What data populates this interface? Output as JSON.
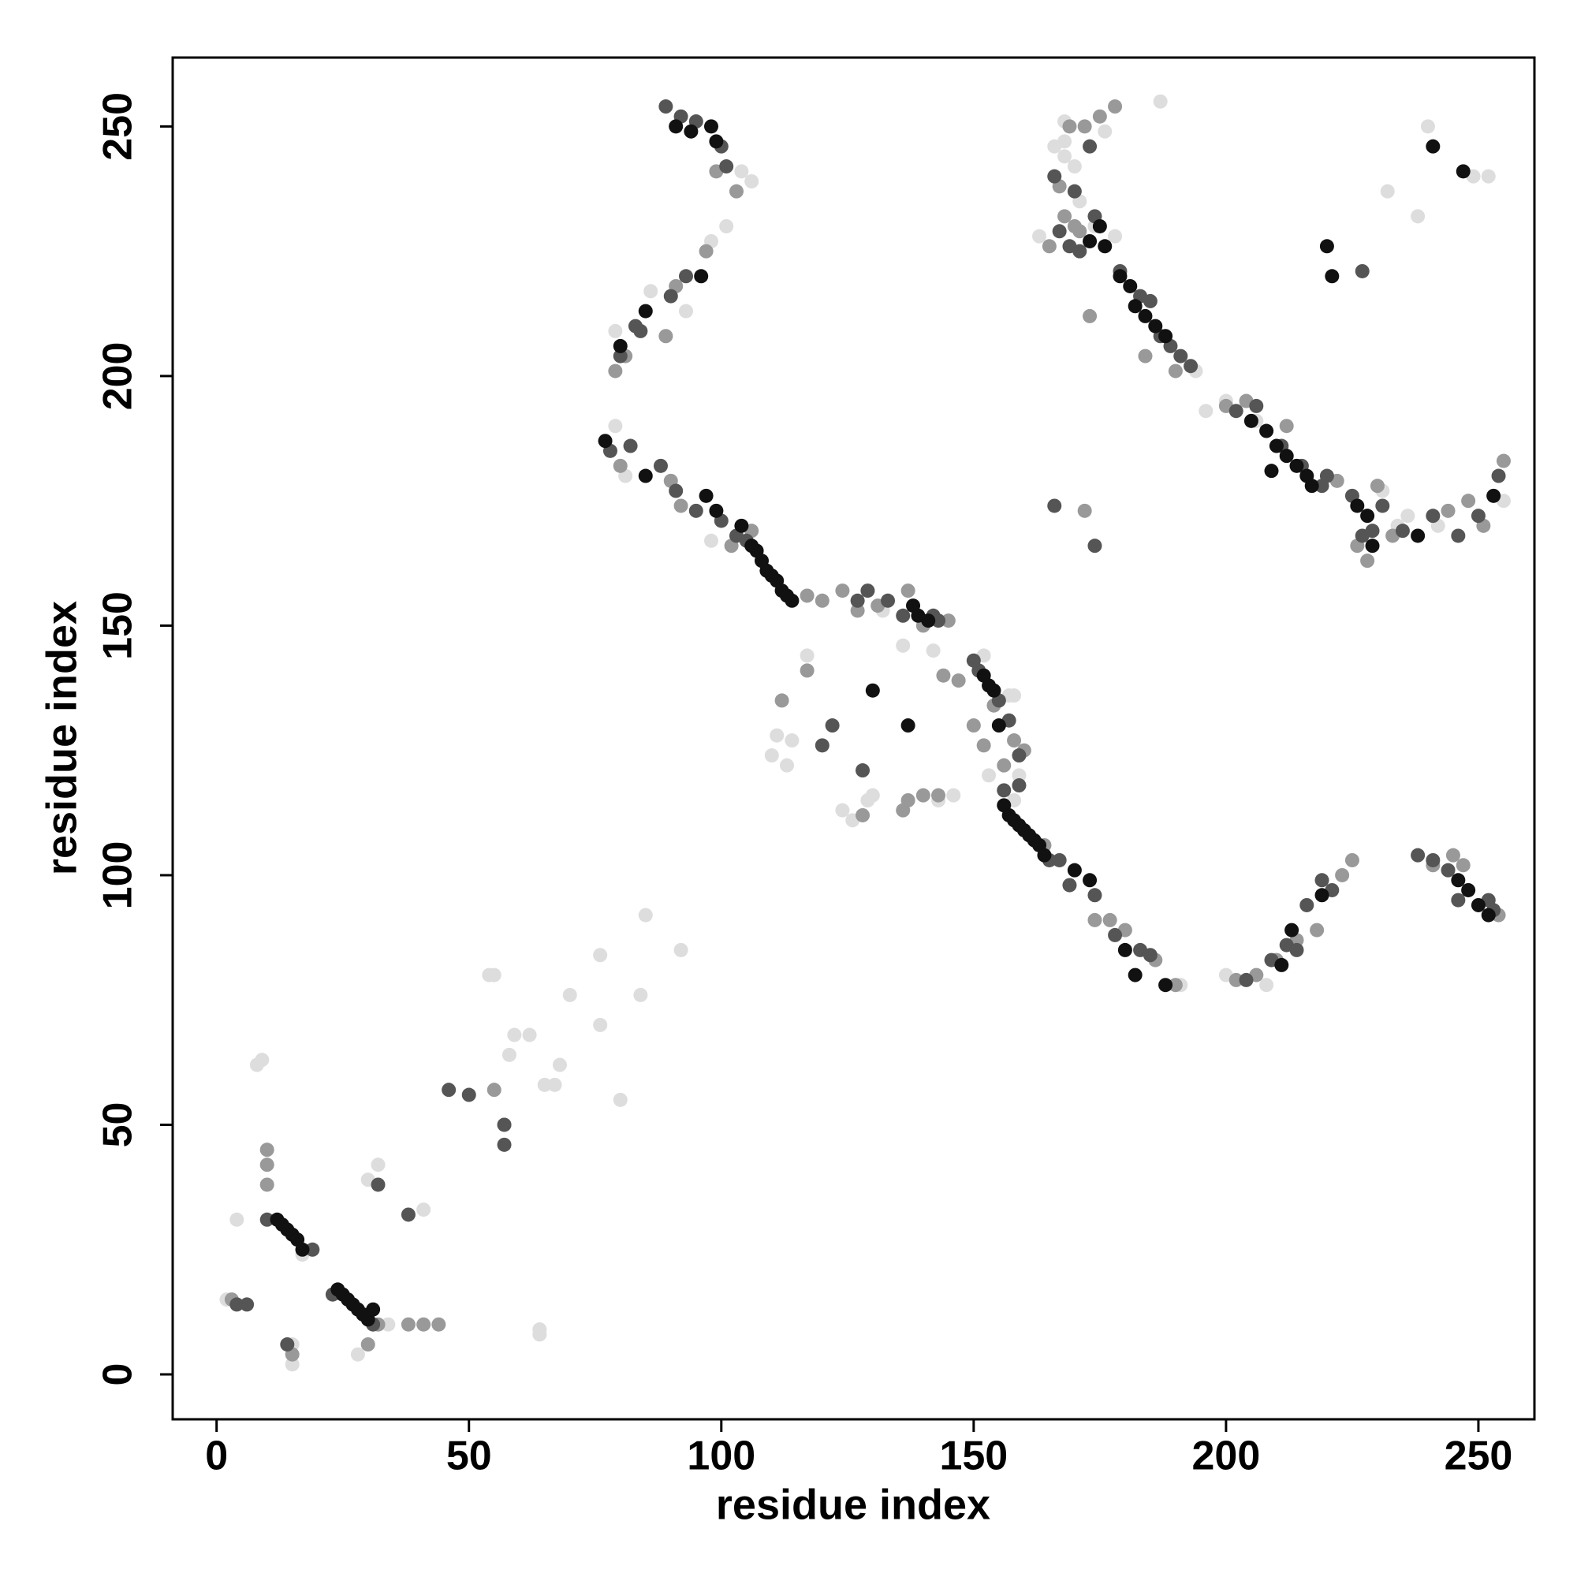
{
  "chart_data": {
    "type": "scatter",
    "x_label": "residue index",
    "y_label": "residue index",
    "xlim": [
      -8.7,
      261.1
    ],
    "ylim": [
      -9,
      263.8
    ],
    "xticks": [
      0,
      50,
      100,
      150,
      200,
      250
    ],
    "yticks": [
      0,
      50,
      100,
      150,
      200,
      250
    ],
    "series": [
      {
        "color": "#dddddd",
        "x": [
          2,
          4,
          8,
          9,
          15,
          15,
          17,
          19,
          28,
          30,
          32,
          34,
          41,
          54,
          55,
          58,
          59,
          62,
          64,
          64,
          65,
          67,
          68,
          70,
          76,
          76,
          80,
          84,
          85,
          92,
          79,
          86,
          93,
          98,
          101,
          104,
          106,
          79,
          81,
          98,
          111,
          113,
          117,
          114,
          110,
          124,
          126,
          129,
          130,
          132,
          143,
          146,
          136,
          142,
          152,
          154,
          158,
          159,
          153,
          158,
          196,
          200,
          206,
          168,
          170,
          171,
          176,
          187,
          166,
          168,
          174,
          178,
          194,
          232,
          238,
          240,
          249,
          252,
          234,
          236,
          231,
          242,
          255,
          168,
          200,
          208,
          191,
          163,
          157
        ],
        "values": [
          15,
          31,
          62,
          63,
          2,
          6,
          24,
          25,
          4,
          39,
          42,
          10,
          33,
          80,
          80,
          64,
          68,
          68,
          9,
          8,
          58,
          58,
          62,
          76,
          84,
          70,
          55,
          76,
          92,
          85,
          209,
          217,
          213,
          227,
          230,
          241,
          239,
          190,
          180,
          167,
          128,
          122,
          144,
          127,
          124,
          113,
          111,
          115,
          116,
          153,
          115,
          116,
          146,
          145,
          144,
          137,
          136,
          120,
          120,
          115,
          193,
          195,
          191,
          251,
          242,
          235,
          249,
          255,
          246,
          244,
          230,
          228,
          201,
          237,
          232,
          250,
          240,
          240,
          170,
          172,
          177,
          170,
          175,
          247,
          80,
          78,
          78,
          228,
          136
        ]
      },
      {
        "color": "#999999",
        "x": [
          3,
          10,
          10,
          10,
          15,
          30,
          32,
          38,
          41,
          44,
          57,
          55,
          79,
          81,
          89,
          91,
          97,
          103,
          99,
          80,
          90,
          92,
          106,
          102,
          117,
          120,
          124,
          127,
          131,
          137,
          140,
          145,
          112,
          117,
          136,
          137,
          140,
          143,
          150,
          152,
          156,
          160,
          164,
          174,
          177,
          180,
          186,
          190,
          202,
          206,
          210,
          214,
          218,
          223,
          225,
          241,
          245,
          247,
          254,
          167,
          168,
          170,
          169,
          172,
          175,
          178,
          184,
          190,
          200,
          204,
          212,
          222,
          226,
          228,
          233,
          244,
          248,
          251,
          255,
          165,
          171,
          173,
          144,
          147,
          154,
          158,
          172,
          230,
          128
        ],
        "values": [
          15,
          45,
          38,
          42,
          4,
          6,
          10,
          10,
          10,
          10,
          50,
          57,
          201,
          204,
          208,
          218,
          225,
          237,
          241,
          182,
          179,
          174,
          169,
          166,
          156,
          155,
          157,
          153,
          154,
          157,
          150,
          151,
          135,
          141,
          113,
          115,
          116,
          116,
          130,
          126,
          122,
          125,
          106,
          91,
          91,
          89,
          83,
          78,
          79,
          80,
          83,
          87,
          89,
          100,
          103,
          102,
          104,
          102,
          92,
          238,
          232,
          230,
          250,
          250,
          252,
          254,
          204,
          201,
          194,
          195,
          190,
          179,
          166,
          163,
          168,
          173,
          175,
          170,
          183,
          226,
          229,
          212,
          140,
          139,
          134,
          127,
          173,
          178,
          112
        ]
      },
      {
        "color": "#555555",
        "x": [
          4,
          6,
          14,
          10,
          19,
          23,
          31,
          32,
          38,
          46,
          50,
          57,
          57,
          89,
          92,
          95,
          100,
          101,
          80,
          83,
          84,
          90,
          93,
          78,
          82,
          88,
          91,
          95,
          100,
          103,
          105,
          122,
          120,
          128,
          133,
          142,
          150,
          151,
          155,
          157,
          159,
          159,
          156,
          165,
          167,
          169,
          174,
          178,
          183,
          185,
          204,
          209,
          212,
          214,
          216,
          219,
          221,
          238,
          241,
          244,
          246,
          252,
          253,
          166,
          167,
          171,
          169,
          174,
          179,
          183,
          185,
          189,
          187,
          191,
          193,
          202,
          206,
          211,
          215,
          219,
          220,
          225,
          227,
          229,
          231,
          235,
          241,
          246,
          250,
          254,
          166,
          174,
          173,
          170,
          227,
          127,
          129,
          136,
          143
        ],
        "values": [
          14,
          14,
          6,
          31,
          25,
          16,
          10,
          38,
          32,
          57,
          56,
          50,
          46,
          254,
          252,
          251,
          246,
          242,
          204,
          210,
          209,
          216,
          220,
          185,
          186,
          182,
          177,
          173,
          171,
          168,
          167,
          130,
          126,
          121,
          155,
          152,
          143,
          141,
          135,
          131,
          124,
          118,
          117,
          103,
          103,
          98,
          96,
          88,
          85,
          84,
          79,
          83,
          86,
          85,
          94,
          99,
          97,
          104,
          103,
          101,
          95,
          95,
          93,
          240,
          229,
          225,
          226,
          232,
          221,
          216,
          215,
          206,
          208,
          204,
          202,
          193,
          194,
          186,
          182,
          178,
          180,
          176,
          168,
          169,
          174,
          169,
          172,
          168,
          172,
          180,
          174,
          166,
          246,
          237,
          221,
          155,
          157,
          152,
          151
        ]
      },
      {
        "color": "#111111",
        "x": [
          12,
          13,
          14,
          15,
          16,
          17,
          24,
          25,
          26,
          27,
          28,
          29,
          30,
          31,
          91,
          94,
          98,
          99,
          85,
          80,
          96,
          77,
          85,
          97,
          99,
          104,
          106,
          107,
          108,
          109,
          110,
          111,
          112,
          113,
          114,
          130,
          137,
          138,
          139,
          141,
          152,
          153,
          154,
          155,
          156,
          157,
          158,
          159,
          160,
          161,
          162,
          163,
          164,
          170,
          173,
          180,
          182,
          188,
          211,
          213,
          219,
          246,
          248,
          250,
          252,
          173,
          176,
          179,
          181,
          182,
          184,
          186,
          188,
          205,
          208,
          210,
          212,
          214,
          216,
          217,
          226,
          228,
          238,
          241,
          247,
          253,
          220,
          221,
          229,
          209,
          175
        ],
        "values": [
          31,
          30,
          29,
          28,
          27,
          25,
          17,
          16,
          15,
          14,
          13,
          12,
          11,
          13,
          250,
          249,
          250,
          247,
          213,
          206,
          220,
          187,
          180,
          176,
          173,
          170,
          166,
          165,
          163,
          161,
          160,
          159,
          157,
          156,
          155,
          137,
          130,
          154,
          152,
          151,
          140,
          138,
          137,
          130,
          114,
          112,
          111,
          110,
          109,
          108,
          107,
          106,
          104,
          101,
          99,
          85,
          80,
          78,
          82,
          89,
          96,
          99,
          97,
          94,
          92,
          227,
          226,
          220,
          218,
          214,
          212,
          210,
          208,
          191,
          189,
          186,
          184,
          182,
          180,
          178,
          174,
          172,
          168,
          246,
          241,
          176,
          226,
          220,
          166,
          181,
          230
        ]
      }
    ]
  }
}
